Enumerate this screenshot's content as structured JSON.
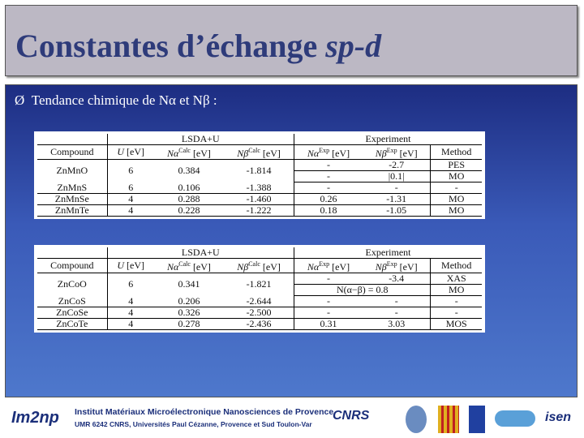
{
  "title": {
    "main": "Constantes d’échange ",
    "italic": "sp-d"
  },
  "bullet": {
    "marker": "Ø",
    "text": "Tendance chimique de Nα et Nβ :"
  },
  "tables": [
    {
      "groups": [
        "LSDA+U",
        "Experiment"
      ],
      "header": [
        {
          "sym": "Compound"
        },
        {
          "sym": "U",
          "unit": "[eV]"
        },
        {
          "sym": "Nα",
          "sup": "Calc",
          "unit": "[eV]"
        },
        {
          "sym": "Nβ",
          "sup": "Calc",
          "unit": "[eV]"
        },
        {
          "sym": "Nα",
          "sup": "Exp",
          "unit": "[eV]"
        },
        {
          "sym": "Nβ",
          "sup": "Exp",
          "unit": "[eV]"
        },
        {
          "sym": "Method"
        }
      ],
      "rows": [
        {
          "main": [
            "ZnMnO",
            "6",
            "0.384",
            "-1.814"
          ],
          "exp": [
            [
              "-",
              "-2.7",
              "PES"
            ],
            [
              "-",
              "|0.1|",
              "MO"
            ]
          ]
        },
        {
          "main": [
            "ZnMnS",
            "6",
            "0.106",
            "-1.388"
          ],
          "exp": [
            [
              "-",
              "-",
              "-"
            ]
          ]
        },
        {
          "main": [
            "ZnMnSe",
            "4",
            "0.288",
            "-1.460"
          ],
          "exp": [
            [
              "0.26",
              "-1.31",
              "MO"
            ]
          ]
        },
        {
          "main": [
            "ZnMnTe",
            "4",
            "0.228",
            "-1.222"
          ],
          "exp": [
            [
              "0.18",
              "-1.05",
              "MO"
            ]
          ]
        }
      ]
    },
    {
      "groups": [
        "LSDA+U",
        "Experiment"
      ],
      "header": [
        {
          "sym": "Compound"
        },
        {
          "sym": "U",
          "unit": "[eV]"
        },
        {
          "sym": "Nα",
          "sup": "Calc",
          "unit": "[eV]"
        },
        {
          "sym": "Nβ",
          "sup": "Calc",
          "unit": "[eV]"
        },
        {
          "sym": "Nα",
          "sup": "Exp",
          "unit": "[eV]"
        },
        {
          "sym": "Nβ",
          "sup": "Exp",
          "unit": "[eV]"
        },
        {
          "sym": "Method"
        }
      ],
      "rows": [
        {
          "main": [
            "ZnCoO",
            "6",
            "0.341",
            "-1.821"
          ],
          "exp": [
            [
              "-",
              "-3.4",
              "XAS"
            ],
            [
              "N(α−β) = 0.8",
              "MO"
            ]
          ]
        },
        {
          "main": [
            "ZnCoS",
            "4",
            "0.206",
            "-2.644"
          ],
          "exp": [
            [
              "-",
              "-",
              "-"
            ]
          ]
        },
        {
          "main": [
            "ZnCoSe",
            "4",
            "0.326",
            "-2.500"
          ],
          "exp": [
            [
              "-",
              "-",
              "-"
            ]
          ]
        },
        {
          "main": [
            "ZnCoTe",
            "4",
            "0.278",
            "-2.436"
          ],
          "exp": [
            [
              "0.31",
              "3.03",
              "MOS"
            ]
          ]
        }
      ]
    }
  ],
  "footer": {
    "logo": "Im2np",
    "institute": "Institut Matériaux Microélectronique Nanosciences de Provence",
    "umr": "UMR 6242 CNRS, Universités Paul Cézanne, Provence et Sud Toulon-Var",
    "cnrs": "CNRS",
    "isen": "isen"
  }
}
